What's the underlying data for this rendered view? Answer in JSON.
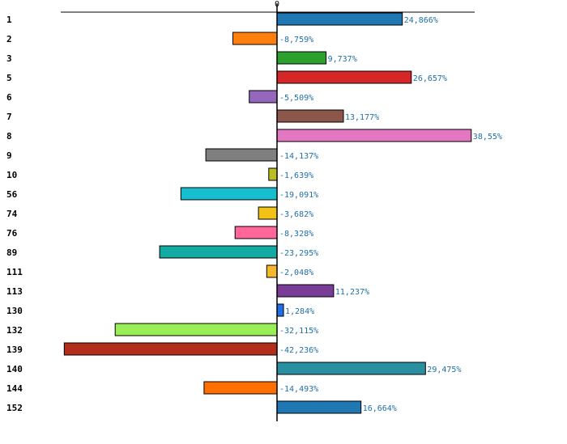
{
  "chart_data": {
    "type": "bar",
    "orientation": "horizontal",
    "title": "",
    "xlabel": "",
    "ylabel": "",
    "zero_tick": "0",
    "value_suffix": "%",
    "xlim": [
      -45.5,
      44.6
    ],
    "categories": [
      "1",
      "2",
      "3",
      "5",
      "6",
      "7",
      "8",
      "9",
      "10",
      "56",
      "74",
      "76",
      "89",
      "111",
      "113",
      "130",
      "132",
      "139",
      "140",
      "144",
      "152"
    ],
    "values": [
      24.866,
      -8.759,
      9.737,
      26.657,
      -5.509,
      13.177,
      38.55,
      -14.137,
      -1.639,
      -19.091,
      -3.682,
      -8.328,
      -23.295,
      -2.048,
      11.237,
      1.284,
      -32.115,
      -42.236,
      29.475,
      -14.493,
      16.664
    ],
    "value_labels": [
      "24,866%",
      "-8,759%",
      "9,737%",
      "26,657%",
      "-5,509%",
      "13,177%",
      "38,55%",
      "-14,137%",
      "-1,639%",
      "-19,091%",
      "-3,682%",
      "-8,328%",
      "-23,295%",
      "-2,048%",
      "11,237%",
      "1,284%",
      "-32,115%",
      "-42,236%",
      "29,475%",
      "-14,493%",
      "16,664%"
    ],
    "colors": [
      "#1f77b4",
      "#ff7f0e",
      "#2ca02c",
      "#d62728",
      "#9467bd",
      "#8c564b",
      "#e377c2",
      "#7f7f7f",
      "#bcbd22",
      "#17becf",
      "#f2c216",
      "#ff6699",
      "#12aaa3",
      "#f5b82b",
      "#7a3d97",
      "#1f6fe8",
      "#99ee55",
      "#b22d1c",
      "#2a8fa0",
      "#ff6f00",
      "#1f77b4"
    ]
  }
}
